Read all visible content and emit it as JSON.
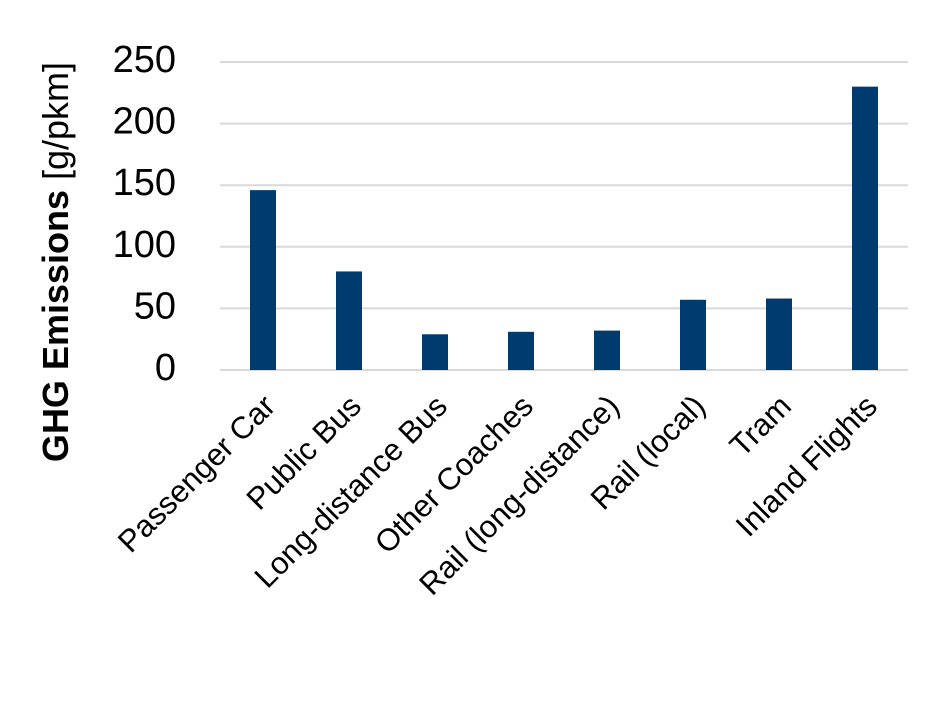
{
  "chart_data": {
    "type": "bar",
    "y_label": {
      "bold": "GHG Emissions",
      "unit": "[g/pkm]"
    },
    "categories": [
      "Passenger Car",
      "Public Bus",
      "Long-distance Bus",
      "Other Coaches",
      "Rail (long-distance)",
      "Rail (local)",
      "Tram",
      "Inland Flights"
    ],
    "values": [
      146,
      80,
      29,
      31,
      32,
      57,
      58,
      230
    ],
    "color": "#003b6f",
    "ylim": [
      0,
      250
    ],
    "yticks": [
      0,
      50,
      100,
      150,
      200,
      250
    ],
    "grid": true
  }
}
